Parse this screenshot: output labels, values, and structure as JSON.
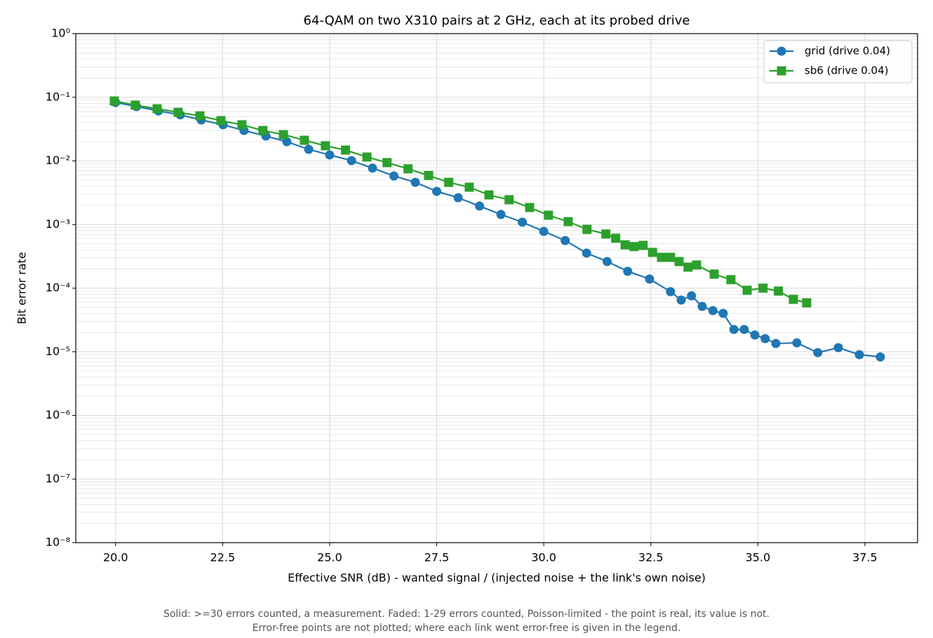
{
  "chart_data": {
    "type": "line",
    "title": "64-QAM on two X310 pairs at 2 GHz, each at its probed drive",
    "xlabel": "Effective SNR (dB)  -  wanted signal / (injected noise + the link's own noise)",
    "ylabel": "Bit error rate",
    "notes": [
      "Solid: >=30 errors counted, a measurement.   Faded: 1-29 errors counted, Poisson-limited - the point is real, its value is not.",
      "Error-free points are not plotted; where each link went error-free is given in the legend."
    ],
    "xlim": [
      19.07,
      38.73
    ],
    "ylim": [
      1e-08,
      1
    ],
    "log_y": true,
    "grid": true,
    "legend": "upper right",
    "xticks": [
      {
        "value": 20,
        "label": "20.0"
      },
      22.5,
      {
        "value": 25,
        "label": "25.0"
      },
      27.5,
      {
        "value": 30,
        "label": "30.0"
      },
      32.5,
      {
        "value": 35,
        "label": "35.0"
      },
      37.5
    ],
    "yticks": [
      {
        "value": 1e-08,
        "label": "10⁻⁸"
      },
      {
        "value": 1e-07,
        "label": "10⁻⁷"
      },
      {
        "value": 1e-06,
        "label": "10⁻⁶"
      },
      {
        "value": 1e-05,
        "label": "10⁻⁵"
      },
      {
        "value": 0.0001,
        "label": "10⁻⁴"
      },
      {
        "value": 0.001,
        "label": "10⁻³"
      },
      {
        "value": 0.01,
        "label": "10⁻²"
      },
      {
        "value": 0.1,
        "label": "10⁻¹"
      },
      {
        "value": 1,
        "label": "10⁰"
      }
    ],
    "series": [
      {
        "name": "grid (drive 0.04)",
        "color": "#1f77b4",
        "marker": "circle",
        "x": [
          20.0,
          20.49,
          21.0,
          21.51,
          22.0,
          22.51,
          23.0,
          23.51,
          24.0,
          24.51,
          25.0,
          25.51,
          26.0,
          26.5,
          27.0,
          27.5,
          28.0,
          28.5,
          29.0,
          29.5,
          30.0,
          30.5,
          31.0,
          31.48,
          31.96,
          32.47,
          32.96,
          33.21,
          33.45,
          33.7,
          33.95,
          34.19,
          34.44,
          34.68,
          34.93,
          35.17,
          35.42,
          35.91,
          36.4,
          36.88,
          37.37,
          37.86
        ],
        "values": [
          0.083,
          0.0715,
          0.061,
          0.053,
          0.044,
          0.037,
          0.03,
          0.0246,
          0.02,
          0.0152,
          0.0124,
          0.0101,
          0.0077,
          0.0058,
          0.00461,
          0.00332,
          0.00264,
          0.00195,
          0.00144,
          0.00109,
          0.00078,
          0.00056,
          0.000356,
          0.000262,
          0.000184,
          0.000139,
          8.81e-05,
          6.5e-05,
          7.57e-05,
          5.17e-05,
          4.44e-05,
          4.01e-05,
          2.24e-05,
          2.24e-05,
          1.83e-05,
          1.61e-05,
          1.35e-05,
          1.38e-05,
          9.7e-06,
          1.16e-05,
          9e-06,
          8.3e-06
        ]
      },
      {
        "name": "sb6 (drive 0.04)",
        "color": "#2ca02c",
        "marker": "square",
        "x": [
          19.97,
          20.46,
          20.97,
          21.46,
          21.97,
          22.46,
          22.95,
          23.44,
          23.92,
          24.41,
          24.9,
          25.37,
          25.87,
          26.34,
          26.83,
          27.31,
          27.78,
          28.26,
          28.72,
          29.19,
          29.67,
          30.11,
          30.57,
          31.01,
          31.45,
          31.68,
          31.9,
          32.11,
          32.32,
          32.54,
          32.75,
          32.96,
          33.16,
          33.37,
          33.57,
          33.98,
          34.37,
          34.75,
          35.12,
          35.48,
          35.83,
          36.14
        ],
        "values": [
          0.0875,
          0.075,
          0.066,
          0.058,
          0.051,
          0.043,
          0.037,
          0.03,
          0.0259,
          0.0211,
          0.0173,
          0.0148,
          0.0115,
          0.0094,
          0.0075,
          0.0059,
          0.0046,
          0.00386,
          0.00292,
          0.00245,
          0.00185,
          0.0014,
          0.00111,
          0.00084,
          0.00071,
          0.00061,
          0.00048,
          0.00045,
          0.00047,
          0.000365,
          0.000305,
          0.000305,
          0.000262,
          0.000214,
          0.000231,
          0.000166,
          0.000136,
          9.27e-05,
          0.0001,
          9e-05,
          6.67e-05,
          5.88e-05
        ]
      }
    ]
  }
}
